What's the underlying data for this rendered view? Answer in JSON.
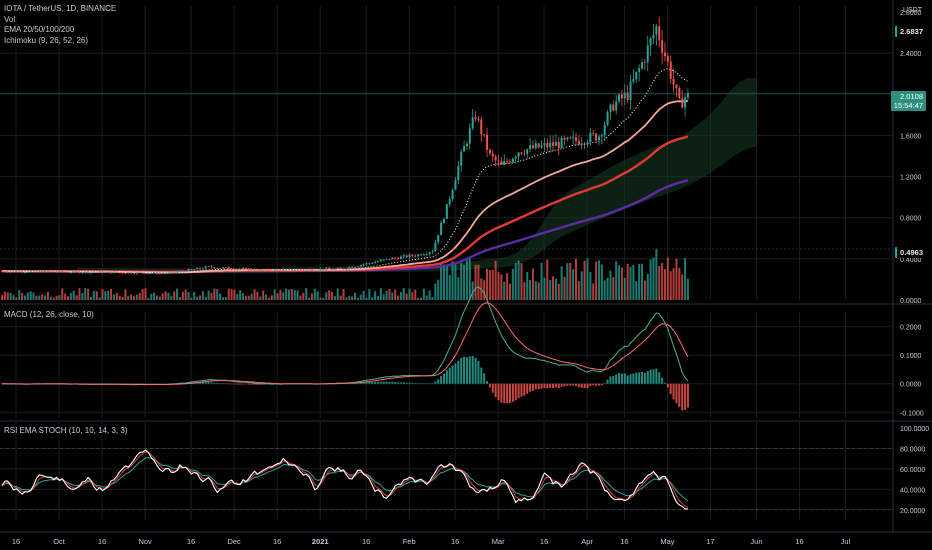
{
  "header": {
    "symbol_line": "IOTA / TetherUS, 1D, BINANCE",
    "vol_label": "Vol",
    "ema_label": "EMA 20/50/100/200",
    "ichimoku_label": "Ichimoku (9, 26, 52, 26)",
    "macd_label": "MACD (12, 26, close, 10)",
    "rsi_label": "RSI EMA STOCH (10, 10, 14, 3, 3)",
    "unit": "USDT"
  },
  "badges": {
    "high": "2.6837",
    "current": "2.0108",
    "countdown": "15:54:47",
    "low": "0.4963"
  },
  "colors": {
    "background": "#000000",
    "grid": "#1a1c22",
    "candle_up": "#26a69a",
    "candle_down": "#ef5350",
    "ema20": "#ffffff",
    "ema50": "#f3a89a",
    "ema100": "#e53935",
    "ema200": "#5e2ba8",
    "cloud": "#183a24",
    "macd_line": "#4caf90",
    "signal_line": "#ff6b6b",
    "rsi_k": "#ffffff",
    "rsi_d": "#e53935",
    "rsi_ema": "#26a69a",
    "badge_high": "#26a69a",
    "badge_current": "#2d8f7f"
  },
  "chart_data": [
    {
      "type": "candlestick",
      "title": "IOTA / TetherUS, 1D, BINANCE",
      "ylim": [
        0.0,
        2.8
      ],
      "y_ticks": [
        "2.8000",
        "2.4000",
        "1.6000",
        "1.2000",
        "0.8000",
        "0.4000",
        "0.0000"
      ],
      "x_ticks": [
        "16",
        "Oct",
        "16",
        "Nov",
        "16",
        "Dec",
        "16",
        "2021",
        "16",
        "Feb",
        "16",
        "Mar",
        "16",
        "Apr",
        "16",
        "May",
        "17",
        "Jun",
        "16",
        "Jul"
      ],
      "last_close": 2.0108,
      "period_high": 2.6837,
      "reference_low": 0.4963,
      "series": [
        {
          "name": "IOTA/USDT"
        },
        {
          "name": "EMA 20"
        },
        {
          "name": "EMA 50"
        },
        {
          "name": "EMA 100"
        },
        {
          "name": "EMA 200"
        },
        {
          "name": "Ichimoku cloud"
        },
        {
          "name": "Vol"
        }
      ]
    },
    {
      "type": "line",
      "title": "MACD (12, 26, close, 10)",
      "ylim": [
        -0.12,
        0.23
      ],
      "y_ticks": [
        "0.2000",
        "0.1000",
        "0.0000",
        "-0.1000"
      ]
    },
    {
      "type": "line",
      "title": "RSI EMA STOCH (10, 10, 14, 3, 3)",
      "ylim": [
        10,
        100
      ],
      "y_ticks": [
        "100.0000",
        "80.0000",
        "60.0000",
        "40.0000",
        "20.0000"
      ]
    }
  ]
}
